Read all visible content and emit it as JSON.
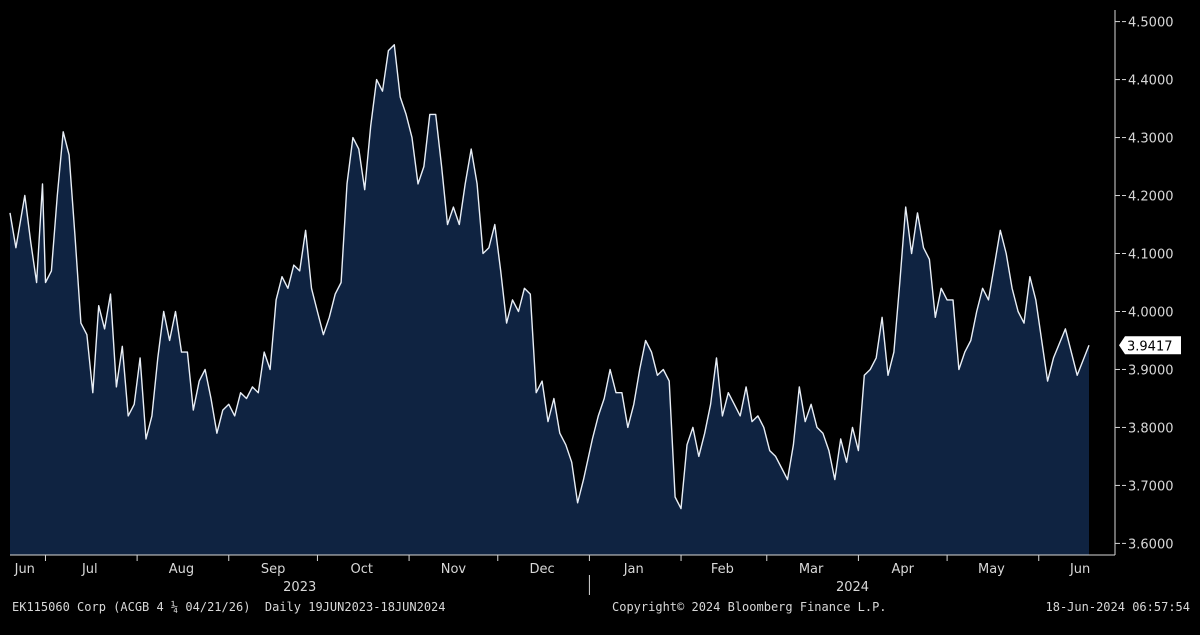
{
  "chart_data": {
    "type": "area",
    "title": "",
    "xlabel": "",
    "ylabel": "",
    "x_start": "19JUN2023",
    "x_end": "18JUN2024",
    "ylim": [
      3.58,
      4.52
    ],
    "yticks": [
      3.6,
      3.7,
      3.8,
      3.9,
      4.0,
      4.1,
      4.2,
      4.3,
      4.4,
      4.5
    ],
    "ytick_labels": [
      "3.6000",
      "3.7000",
      "3.8000",
      "3.9000",
      "4.0000",
      "4.1000",
      "4.2000",
      "4.3000",
      "4.4000",
      "4.5000"
    ],
    "last_value_label": "3.9417",
    "month_labels": [
      {
        "label": "Jun",
        "date": "2023-06-24"
      },
      {
        "label": "Jul",
        "date": "2023-07-16"
      },
      {
        "label": "Aug",
        "date": "2023-08-16"
      },
      {
        "label": "Sep",
        "date": "2023-09-16"
      },
      {
        "label": "Oct",
        "date": "2023-10-16"
      },
      {
        "label": "Nov",
        "date": "2023-11-16"
      },
      {
        "label": "Dec",
        "date": "2023-12-16"
      },
      {
        "label": "Jan",
        "date": "2024-01-16"
      },
      {
        "label": "Feb",
        "date": "2024-02-15"
      },
      {
        "label": "Mar",
        "date": "2024-03-16"
      },
      {
        "label": "Apr",
        "date": "2024-04-16"
      },
      {
        "label": "May",
        "date": "2024-05-16"
      },
      {
        "label": "Jun",
        "date": "2024-06-15"
      }
    ],
    "month_ticks": [
      "2023-07-01",
      "2023-08-01",
      "2023-09-01",
      "2023-10-01",
      "2023-11-01",
      "2023-12-01",
      "2024-01-01",
      "2024-02-01",
      "2024-03-01",
      "2024-04-01",
      "2024-05-01",
      "2024-06-01"
    ],
    "year_labels": [
      {
        "label": "2023",
        "date": "2023-09-25"
      },
      {
        "label": "2024",
        "date": "2024-03-30"
      }
    ],
    "year_divider": "2024-01-01",
    "series": [
      {
        "colors": {
          "line": "#e8eef6",
          "fill": "#0f2341"
        },
        "points": [
          [
            "2023-06-19",
            4.17
          ],
          [
            "2023-06-21",
            4.11
          ],
          [
            "2023-06-24",
            4.2
          ],
          [
            "2023-06-26",
            4.12
          ],
          [
            "2023-06-28",
            4.05
          ],
          [
            "2023-06-30",
            4.22
          ],
          [
            "2023-07-01",
            4.05
          ],
          [
            "2023-07-03",
            4.07
          ],
          [
            "2023-07-05",
            4.2
          ],
          [
            "2023-07-07",
            4.31
          ],
          [
            "2023-07-09",
            4.27
          ],
          [
            "2023-07-11",
            4.13
          ],
          [
            "2023-07-13",
            3.98
          ],
          [
            "2023-07-15",
            3.96
          ],
          [
            "2023-07-17",
            3.86
          ],
          [
            "2023-07-19",
            4.01
          ],
          [
            "2023-07-21",
            3.97
          ],
          [
            "2023-07-23",
            4.03
          ],
          [
            "2023-07-25",
            3.87
          ],
          [
            "2023-07-27",
            3.94
          ],
          [
            "2023-07-29",
            3.82
          ],
          [
            "2023-07-31",
            3.84
          ],
          [
            "2023-08-02",
            3.92
          ],
          [
            "2023-08-04",
            3.78
          ],
          [
            "2023-08-06",
            3.82
          ],
          [
            "2023-08-08",
            3.92
          ],
          [
            "2023-08-10",
            4.0
          ],
          [
            "2023-08-12",
            3.95
          ],
          [
            "2023-08-14",
            4.0
          ],
          [
            "2023-08-16",
            3.93
          ],
          [
            "2023-08-18",
            3.93
          ],
          [
            "2023-08-20",
            3.83
          ],
          [
            "2023-08-22",
            3.88
          ],
          [
            "2023-08-24",
            3.9
          ],
          [
            "2023-08-26",
            3.85
          ],
          [
            "2023-08-28",
            3.79
          ],
          [
            "2023-08-30",
            3.83
          ],
          [
            "2023-09-01",
            3.84
          ],
          [
            "2023-09-03",
            3.82
          ],
          [
            "2023-09-05",
            3.86
          ],
          [
            "2023-09-07",
            3.85
          ],
          [
            "2023-09-09",
            3.87
          ],
          [
            "2023-09-11",
            3.86
          ],
          [
            "2023-09-13",
            3.93
          ],
          [
            "2023-09-15",
            3.9
          ],
          [
            "2023-09-17",
            4.02
          ],
          [
            "2023-09-19",
            4.06
          ],
          [
            "2023-09-21",
            4.04
          ],
          [
            "2023-09-23",
            4.08
          ],
          [
            "2023-09-25",
            4.07
          ],
          [
            "2023-09-27",
            4.14
          ],
          [
            "2023-09-29",
            4.04
          ],
          [
            "2023-10-01",
            4.0
          ],
          [
            "2023-10-03",
            3.96
          ],
          [
            "2023-10-05",
            3.99
          ],
          [
            "2023-10-07",
            4.03
          ],
          [
            "2023-10-09",
            4.05
          ],
          [
            "2023-10-11",
            4.22
          ],
          [
            "2023-10-13",
            4.3
          ],
          [
            "2023-10-15",
            4.28
          ],
          [
            "2023-10-17",
            4.21
          ],
          [
            "2023-10-19",
            4.32
          ],
          [
            "2023-10-21",
            4.4
          ],
          [
            "2023-10-23",
            4.38
          ],
          [
            "2023-10-25",
            4.45
          ],
          [
            "2023-10-27",
            4.46
          ],
          [
            "2023-10-29",
            4.37
          ],
          [
            "2023-10-31",
            4.34
          ],
          [
            "2023-11-02",
            4.3
          ],
          [
            "2023-11-04",
            4.22
          ],
          [
            "2023-11-06",
            4.25
          ],
          [
            "2023-11-08",
            4.34
          ],
          [
            "2023-11-10",
            4.34
          ],
          [
            "2023-11-12",
            4.25
          ],
          [
            "2023-11-14",
            4.15
          ],
          [
            "2023-11-16",
            4.18
          ],
          [
            "2023-11-18",
            4.15
          ],
          [
            "2023-11-20",
            4.22
          ],
          [
            "2023-11-22",
            4.28
          ],
          [
            "2023-11-24",
            4.22
          ],
          [
            "2023-11-26",
            4.1
          ],
          [
            "2023-11-28",
            4.11
          ],
          [
            "2023-11-30",
            4.15
          ],
          [
            "2023-12-02",
            4.07
          ],
          [
            "2023-12-04",
            3.98
          ],
          [
            "2023-12-06",
            4.02
          ],
          [
            "2023-12-08",
            4.0
          ],
          [
            "2023-12-10",
            4.04
          ],
          [
            "2023-12-12",
            4.03
          ],
          [
            "2023-12-14",
            3.86
          ],
          [
            "2023-12-16",
            3.88
          ],
          [
            "2023-12-18",
            3.81
          ],
          [
            "2023-12-20",
            3.85
          ],
          [
            "2023-12-22",
            3.79
          ],
          [
            "2023-12-24",
            3.77
          ],
          [
            "2023-12-26",
            3.74
          ],
          [
            "2023-12-28",
            3.67
          ],
          [
            "2023-12-30",
            3.71
          ],
          [
            "2024-01-02",
            3.78
          ],
          [
            "2024-01-04",
            3.82
          ],
          [
            "2024-01-06",
            3.85
          ],
          [
            "2024-01-08",
            3.9
          ],
          [
            "2024-01-10",
            3.86
          ],
          [
            "2024-01-12",
            3.86
          ],
          [
            "2024-01-14",
            3.8
          ],
          [
            "2024-01-16",
            3.84
          ],
          [
            "2024-01-18",
            3.9
          ],
          [
            "2024-01-20",
            3.95
          ],
          [
            "2024-01-22",
            3.93
          ],
          [
            "2024-01-24",
            3.89
          ],
          [
            "2024-01-26",
            3.9
          ],
          [
            "2024-01-28",
            3.88
          ],
          [
            "2024-01-30",
            3.68
          ],
          [
            "2024-02-01",
            3.66
          ],
          [
            "2024-02-03",
            3.77
          ],
          [
            "2024-02-05",
            3.8
          ],
          [
            "2024-02-07",
            3.75
          ],
          [
            "2024-02-09",
            3.79
          ],
          [
            "2024-02-11",
            3.84
          ],
          [
            "2024-02-13",
            3.92
          ],
          [
            "2024-02-15",
            3.82
          ],
          [
            "2024-02-17",
            3.86
          ],
          [
            "2024-02-19",
            3.84
          ],
          [
            "2024-02-21",
            3.82
          ],
          [
            "2024-02-23",
            3.87
          ],
          [
            "2024-02-25",
            3.81
          ],
          [
            "2024-02-27",
            3.82
          ],
          [
            "2024-02-29",
            3.8
          ],
          [
            "2024-03-02",
            3.76
          ],
          [
            "2024-03-04",
            3.75
          ],
          [
            "2024-03-06",
            3.73
          ],
          [
            "2024-03-08",
            3.71
          ],
          [
            "2024-03-10",
            3.77
          ],
          [
            "2024-03-12",
            3.87
          ],
          [
            "2024-03-14",
            3.81
          ],
          [
            "2024-03-16",
            3.84
          ],
          [
            "2024-03-18",
            3.8
          ],
          [
            "2024-03-20",
            3.79
          ],
          [
            "2024-03-22",
            3.76
          ],
          [
            "2024-03-24",
            3.71
          ],
          [
            "2024-03-26",
            3.78
          ],
          [
            "2024-03-28",
            3.74
          ],
          [
            "2024-03-30",
            3.8
          ],
          [
            "2024-04-01",
            3.76
          ],
          [
            "2024-04-03",
            3.89
          ],
          [
            "2024-04-05",
            3.9
          ],
          [
            "2024-04-07",
            3.92
          ],
          [
            "2024-04-09",
            3.99
          ],
          [
            "2024-04-11",
            3.89
          ],
          [
            "2024-04-13",
            3.93
          ],
          [
            "2024-04-15",
            4.05
          ],
          [
            "2024-04-17",
            4.18
          ],
          [
            "2024-04-19",
            4.1
          ],
          [
            "2024-04-21",
            4.17
          ],
          [
            "2024-04-23",
            4.11
          ],
          [
            "2024-04-25",
            4.09
          ],
          [
            "2024-04-27",
            3.99
          ],
          [
            "2024-04-29",
            4.04
          ],
          [
            "2024-05-01",
            4.02
          ],
          [
            "2024-05-03",
            4.02
          ],
          [
            "2024-05-05",
            3.9
          ],
          [
            "2024-05-07",
            3.93
          ],
          [
            "2024-05-09",
            3.95
          ],
          [
            "2024-05-11",
            4.0
          ],
          [
            "2024-05-13",
            4.04
          ],
          [
            "2024-05-15",
            4.02
          ],
          [
            "2024-05-17",
            4.08
          ],
          [
            "2024-05-19",
            4.14
          ],
          [
            "2024-05-21",
            4.1
          ],
          [
            "2024-05-23",
            4.04
          ],
          [
            "2024-05-25",
            4.0
          ],
          [
            "2024-05-27",
            3.98
          ],
          [
            "2024-05-29",
            4.06
          ],
          [
            "2024-05-31",
            4.02
          ],
          [
            "2024-06-02",
            3.95
          ],
          [
            "2024-06-04",
            3.88
          ],
          [
            "2024-06-06",
            3.92
          ],
          [
            "2024-06-10",
            3.97
          ],
          [
            "2024-06-14",
            3.89
          ],
          [
            "2024-06-18",
            3.9417
          ]
        ]
      }
    ]
  },
  "footer": {
    "security": "EK115060 Corp (ACGB 4 ¼ 04/21/26)",
    "period": "Daily 19JUN2023-18JUN2024",
    "copyright": "Copyright© 2024 Bloomberg Finance L.P.",
    "timestamp": "18-Jun-2024 06:57:54"
  },
  "colors": {
    "background": "#000000",
    "plot_background": "#000000",
    "axis": "#d8d8d8",
    "text": "#d8d8d8",
    "label_box": "#ffffff",
    "label_text": "#000000"
  }
}
